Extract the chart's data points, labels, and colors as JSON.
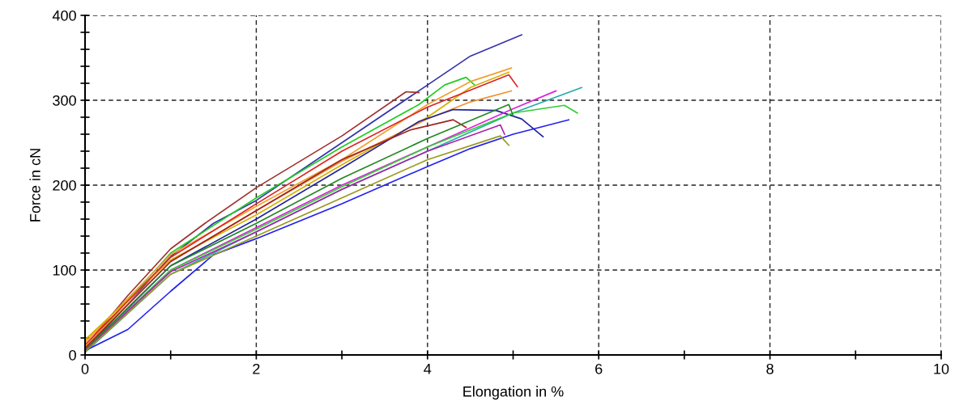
{
  "chart_data": {
    "type": "line",
    "xlabel": "Elongation in %",
    "ylabel": "Force in cN",
    "xlim": [
      0,
      10
    ],
    "ylim": [
      0,
      400
    ],
    "xticks": [
      0,
      {
        "value": 1,
        "label": null
      },
      2,
      {
        "value": 3,
        "label": null
      },
      4,
      {
        "value": 5,
        "label": null
      },
      6,
      {
        "value": 7,
        "label": null
      },
      8,
      {
        "value": 9,
        "label": null
      },
      10
    ],
    "yticks": [
      0,
      {
        "value": 20,
        "label": null
      },
      {
        "value": 40,
        "label": null
      },
      {
        "value": 60,
        "label": null
      },
      {
        "value": 80,
        "label": null
      },
      100,
      {
        "value": 120,
        "label": null
      },
      {
        "value": 140,
        "label": null
      },
      {
        "value": 160,
        "label": null
      },
      {
        "value": 180,
        "label": null
      },
      200,
      {
        "value": 220,
        "label": null
      },
      {
        "value": 240,
        "label": null
      },
      {
        "value": 260,
        "label": null
      },
      {
        "value": 280,
        "label": null
      },
      300,
      {
        "value": 320,
        "label": null
      },
      {
        "value": 340,
        "label": null
      },
      {
        "value": 360,
        "label": null
      },
      {
        "value": 380,
        "label": null
      },
      400
    ],
    "grid": true,
    "legend": false,
    "marker": "none",
    "line_style": "solid",
    "series": [
      {
        "color": "#3333aa",
        "x": [
          0,
          0.5,
          1,
          1.5,
          2,
          3,
          4,
          4.5,
          5.1
        ],
        "values": [
          5,
          60,
          116,
          155,
          182,
          250,
          318,
          352,
          377
        ]
      },
      {
        "color": "#a03030",
        "x": [
          0,
          0.5,
          1,
          1.4,
          2,
          3,
          3.75,
          3.9
        ],
        "values": [
          10,
          70,
          125,
          155,
          197,
          258,
          310,
          309
        ]
      },
      {
        "color": "#22cc22",
        "x": [
          0,
          1,
          2,
          3,
          3.9,
          4.2,
          4.45,
          4.55
        ],
        "values": [
          8,
          120,
          185,
          245,
          295,
          318,
          327,
          318
        ]
      },
      {
        "color": "#f0a030",
        "x": [
          0,
          1,
          2,
          3,
          4,
          4.5,
          4.98
        ],
        "values": [
          15,
          118,
          175,
          230,
          295,
          322,
          338
        ]
      },
      {
        "color": "#d4b000",
        "x": [
          0,
          1,
          2,
          3,
          4,
          4.5,
          4.95
        ],
        "values": [
          18,
          112,
          165,
          224,
          280,
          315,
          333
        ]
      },
      {
        "color": "#dd2222",
        "x": [
          0,
          1,
          2,
          3,
          4,
          4.5,
          4.95,
          5.05
        ],
        "values": [
          12,
          115,
          178,
          240,
          292,
          312,
          330,
          316
        ]
      },
      {
        "color": "#f09030",
        "x": [
          0,
          1,
          2,
          3,
          4,
          4.5,
          4.98
        ],
        "values": [
          10,
          110,
          170,
          228,
          278,
          298,
          311
        ]
      },
      {
        "color": "#22229a",
        "x": [
          0,
          1,
          2,
          3,
          3.9,
          4.3,
          4.8,
          5.1,
          5.35
        ],
        "values": [
          5,
          105,
          160,
          220,
          275,
          289,
          288,
          278,
          257
        ]
      },
      {
        "color": "#a02020",
        "x": [
          0,
          1,
          2,
          3,
          3.8,
          4.3,
          4.45
        ],
        "values": [
          8,
          110,
          170,
          230,
          265,
          277,
          268
        ]
      },
      {
        "color": "#dd22dd",
        "x": [
          0,
          1,
          2,
          3,
          4,
          5,
          5.5
        ],
        "values": [
          5,
          100,
          150,
          200,
          245,
          290,
          311
        ]
      },
      {
        "color": "#22aaaa",
        "x": [
          0,
          1,
          2,
          3,
          4,
          5,
          5.8
        ],
        "values": [
          3,
          95,
          145,
          195,
          240,
          285,
          315
        ]
      },
      {
        "color": "#33cc33",
        "x": [
          0,
          1,
          2,
          3,
          4,
          5,
          5.6,
          5.75
        ],
        "values": [
          5,
          100,
          148,
          198,
          245,
          285,
          294,
          285
        ]
      },
      {
        "color": "#228822",
        "x": [
          0,
          1,
          2,
          3,
          4,
          4.95,
          5.0
        ],
        "values": [
          6,
          105,
          155,
          208,
          255,
          295,
          282
        ]
      },
      {
        "color": "#aa22aa",
        "x": [
          0,
          1,
          2,
          3,
          4,
          4.85,
          4.9
        ],
        "values": [
          5,
          98,
          145,
          195,
          240,
          271,
          260
        ]
      },
      {
        "color": "#2222ee",
        "x": [
          0,
          0.5,
          1,
          1.5,
          2,
          3,
          4,
          4.5,
          5,
          5.65
        ],
        "values": [
          5,
          30,
          75,
          118,
          137,
          178,
          222,
          243,
          260,
          277
        ]
      },
      {
        "color": "#999922",
        "x": [
          0,
          1,
          2,
          3,
          4,
          4.85,
          4.95
        ],
        "values": [
          4,
          95,
          140,
          185,
          230,
          258,
          247
        ]
      }
    ]
  }
}
